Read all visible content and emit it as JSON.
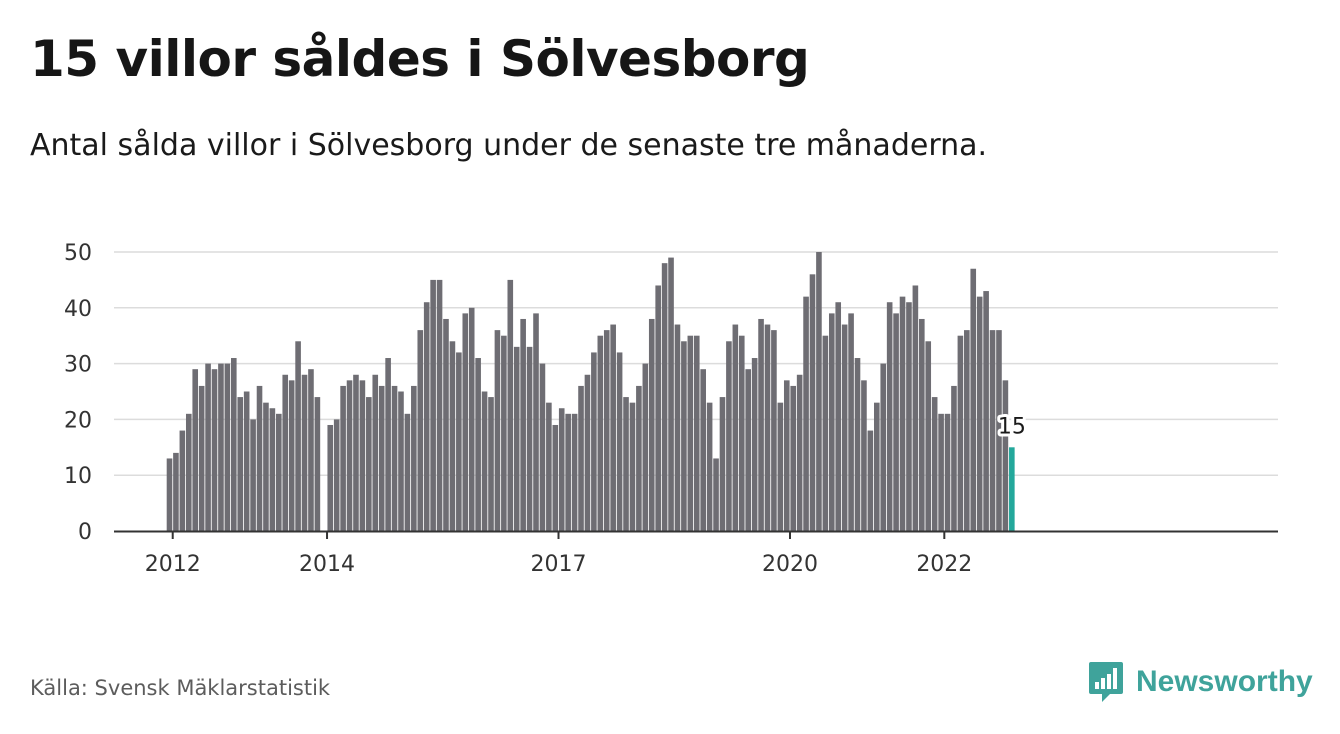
{
  "header": {
    "title": "15 villor såldes i Sölvesborg",
    "subtitle": "Antal sålda villor i Sölvesborg under de senaste tre månaderna."
  },
  "footer": {
    "source": "Källa: Svensk Mäklarstatistik",
    "brand": "Newsworthy"
  },
  "colors": {
    "bar": "#6e6d73",
    "highlight": "#23a89b",
    "grid": "#dcdcdc",
    "axis": "#333333",
    "brand": "#3fa39b"
  },
  "chart_data": {
    "type": "bar",
    "start": "2011-12",
    "ylim": [
      0,
      50
    ],
    "yticks": [
      0,
      10,
      20,
      30,
      40,
      50
    ],
    "xtick_labels": [
      {
        "label": "2012",
        "month": "2012-01"
      },
      {
        "label": "2014",
        "month": "2014-01"
      },
      {
        "label": "2017",
        "month": "2017-01"
      },
      {
        "label": "2020",
        "month": "2020-01"
      },
      {
        "label": "2022",
        "month": "2022-01"
      }
    ],
    "values": [
      13,
      14,
      18,
      21,
      29,
      26,
      30,
      29,
      30,
      30,
      31,
      24,
      25,
      20,
      26,
      23,
      22,
      21,
      28,
      27,
      34,
      28,
      29,
      24,
      null,
      19,
      20,
      26,
      27,
      28,
      27,
      24,
      28,
      26,
      31,
      26,
      25,
      21,
      26,
      36,
      41,
      45,
      45,
      38,
      34,
      32,
      39,
      40,
      31,
      25,
      24,
      36,
      35,
      45,
      33,
      38,
      33,
      39,
      30,
      23,
      19,
      22,
      21,
      21,
      26,
      28,
      32,
      35,
      36,
      37,
      32,
      24,
      23,
      26,
      30,
      38,
      44,
      48,
      49,
      37,
      34,
      35,
      35,
      29,
      23,
      13,
      24,
      34,
      37,
      35,
      29,
      31,
      38,
      37,
      36,
      23,
      27,
      26,
      28,
      42,
      46,
      50,
      35,
      39,
      41,
      37,
      39,
      31,
      27,
      18,
      23,
      30,
      41,
      39,
      42,
      41,
      44,
      38,
      34,
      24,
      21,
      21,
      26,
      35,
      36,
      47,
      42,
      43,
      36,
      36,
      27,
      15
    ],
    "highlight": {
      "value": 15,
      "label": "15"
    }
  }
}
